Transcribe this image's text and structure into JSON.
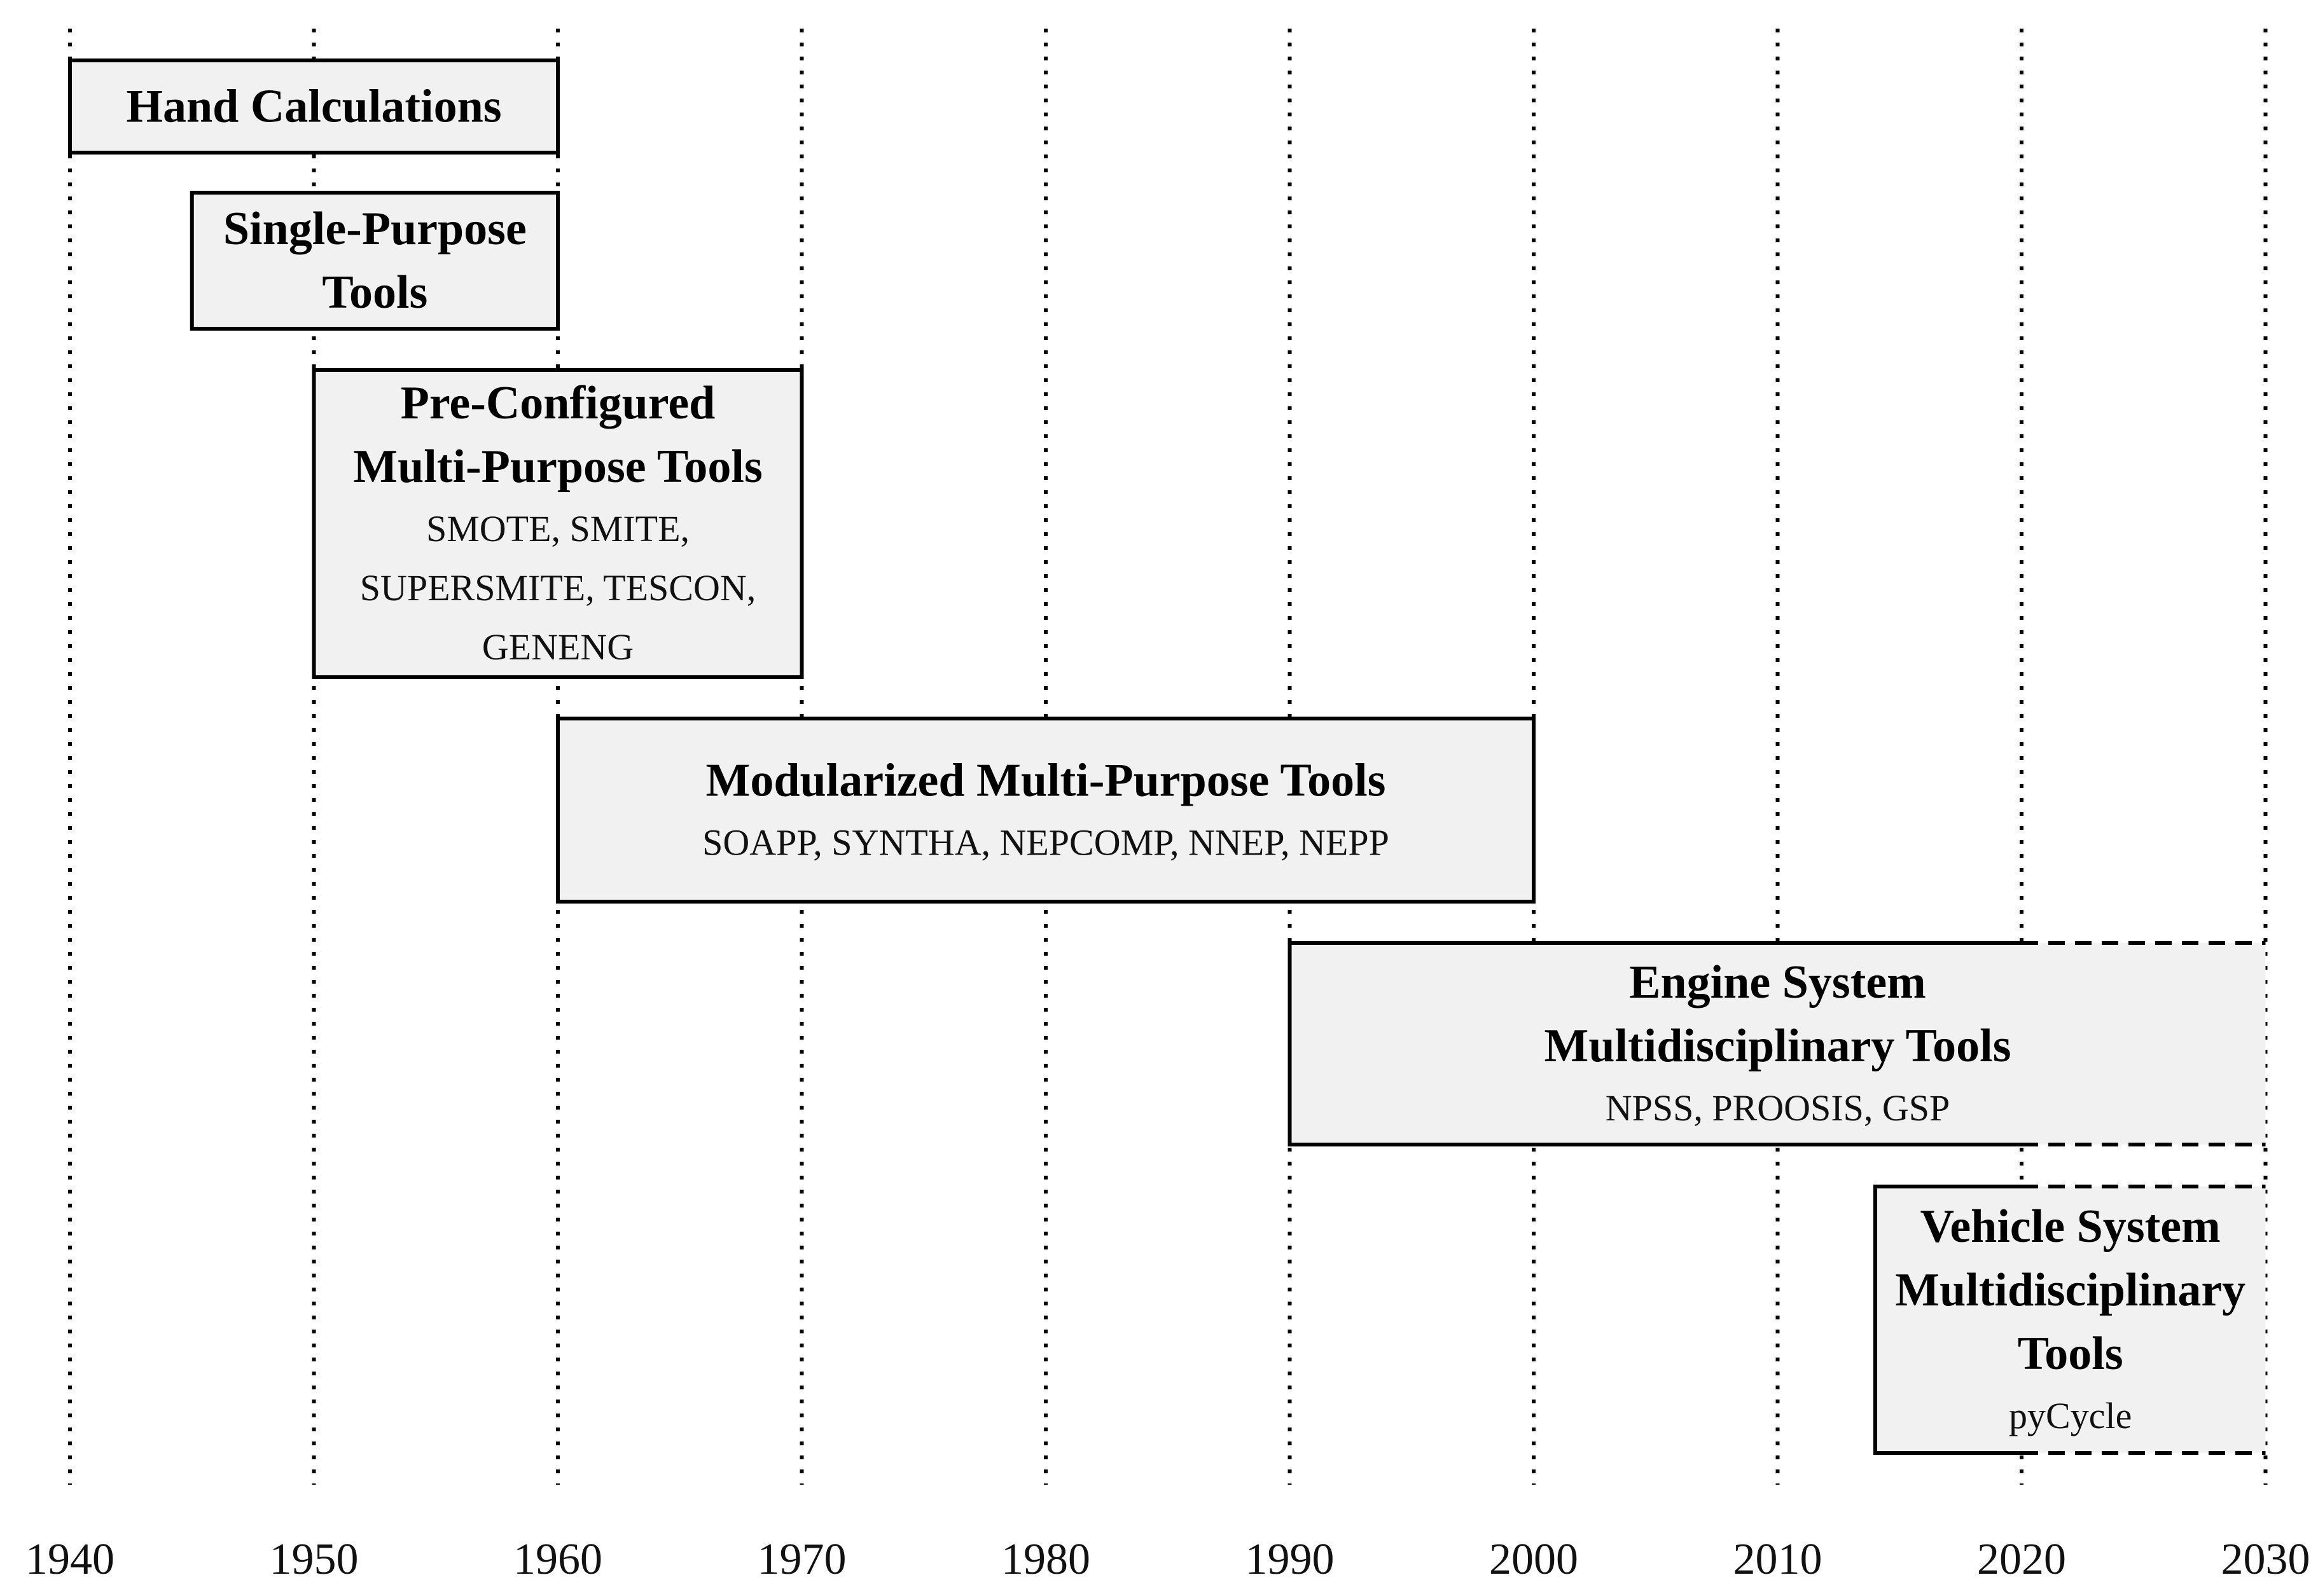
{
  "axis": {
    "years": [
      "1940",
      "1950",
      "1960",
      "1970",
      "1980",
      "1990",
      "2000",
      "2010",
      "2020",
      "2030"
    ]
  },
  "colors": {
    "box_fill": "#f1f1f1",
    "box_stroke": "#000000",
    "gridline": "#000000"
  },
  "eras": [
    {
      "id": "hand-calculations",
      "start": 1940,
      "end": 1960,
      "open_end": false,
      "title_lines": [
        "Hand Calculations"
      ],
      "tools_lines": []
    },
    {
      "id": "single-purpose-tools",
      "start": 1945,
      "end": 1960,
      "open_end": false,
      "title_lines": [
        "Single-Purpose",
        "Tools"
      ],
      "tools_lines": []
    },
    {
      "id": "pre-configured-multi-purpose-tools",
      "start": 1950,
      "end": 1970,
      "open_end": false,
      "title_lines": [
        "Pre-Configured",
        "Multi-Purpose Tools"
      ],
      "tools_lines": [
        "SMOTE, SMITE,",
        "SUPERSMITE, TESCON,",
        "GENENG"
      ]
    },
    {
      "id": "modularized-multi-purpose-tools",
      "start": 1960,
      "end": 2000,
      "open_end": false,
      "title_lines": [
        "Modularized Multi-Purpose Tools"
      ],
      "tools_lines": [
        "SOAPP, SYNTHA, NEPCOMP, NNEP, NEPP"
      ]
    },
    {
      "id": "engine-system-multidisciplinary-tools",
      "start": 1990,
      "end": 2030,
      "open_end": true,
      "solid_until": 2020,
      "title_lines": [
        "Engine System",
        "Multidisciplinary Tools"
      ],
      "tools_lines": [
        "NPSS, PROOSIS, GSP"
      ]
    },
    {
      "id": "vehicle-system-multidisciplinary-tools",
      "start": 2014,
      "end": 2030,
      "open_end": true,
      "solid_until": 2020,
      "title_lines": [
        "Vehicle System",
        "Multidisciplinary",
        "Tools"
      ],
      "tools_lines": [
        "pyCycle"
      ]
    }
  ]
}
